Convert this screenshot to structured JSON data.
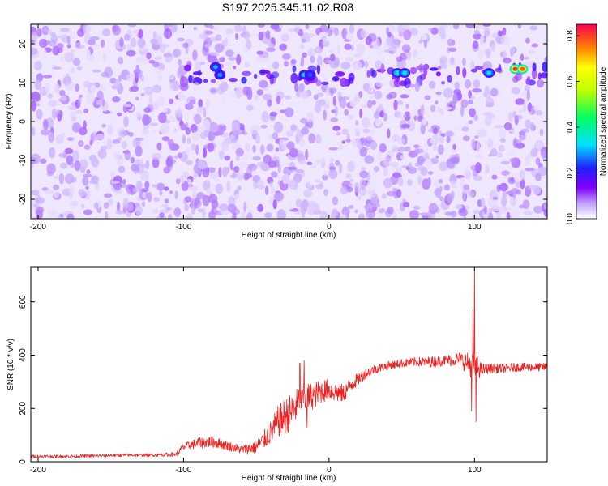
{
  "title": "S197.2025.345.11.02.R08",
  "colors": {
    "spectrogram_low": "#ffffff",
    "spectrogram_mid": "#8000ff",
    "snr_line": "#ee2222"
  },
  "chart_data": [
    {
      "type": "heatmap",
      "title": "S197.2025.345.11.02.R08",
      "xlabel": "Height of straight line (km)",
      "ylabel": "Frequency (Hz)",
      "xlim": [
        -205,
        150
      ],
      "ylim": [
        -25,
        25
      ],
      "x_ticks": [
        "-200",
        "-100",
        "0",
        "100"
      ],
      "x_tick_values": [
        -200,
        -100,
        0,
        100
      ],
      "y_ticks": [
        "-20",
        "-10",
        "0",
        "10",
        "20"
      ],
      "y_tick_values": [
        -20,
        -10,
        0,
        10,
        20
      ],
      "colorbar": {
        "label": "Normalized spectral amplitude",
        "range": [
          0,
          0.85
        ],
        "ticks": [
          "0.0",
          "0.2",
          "0.4",
          "0.6",
          "0.8"
        ],
        "tick_values": [
          0,
          0.2,
          0.4,
          0.6,
          0.8
        ],
        "colormap": "white-violet-blue-cyan-green-yellow-red"
      },
      "background_level": 0.05,
      "band": {
        "frequency_hz": 12,
        "x_start_km": -100,
        "x_end_km": 150,
        "level": 0.15
      },
      "hotspots": [
        {
          "x": -78,
          "y": 14,
          "value": 0.3
        },
        {
          "x": -75,
          "y": 12,
          "value": 0.28
        },
        {
          "x": -17,
          "y": 12,
          "value": 0.32
        },
        {
          "x": -13,
          "y": 12,
          "value": 0.25
        },
        {
          "x": 47,
          "y": 12.5,
          "value": 0.38
        },
        {
          "x": 52,
          "y": 12.5,
          "value": 0.36
        },
        {
          "x": 110,
          "y": 12.5,
          "value": 0.35
        },
        {
          "x": 128,
          "y": 13.5,
          "value": 0.82
        },
        {
          "x": 133,
          "y": 13.5,
          "value": 0.78
        }
      ],
      "grid": false
    },
    {
      "type": "line",
      "xlabel": "Height of straight line (km)",
      "ylabel": "SNR (10 * v/v)",
      "xlim": [
        -205,
        150
      ],
      "ylim": [
        0,
        730
      ],
      "x_ticks": [
        "-200",
        "-100",
        "0",
        "100"
      ],
      "x_tick_values": [
        -200,
        -100,
        0,
        100
      ],
      "y_ticks": [
        "0",
        "200",
        "400",
        "600"
      ],
      "y_tick_values": [
        0,
        200,
        400,
        600
      ],
      "grid": false,
      "series": [
        {
          "color": "#ee2222",
          "x": [
            -205,
            -180,
            -160,
            -140,
            -120,
            -105,
            -100,
            -90,
            -80,
            -70,
            -60,
            -50,
            -45,
            -40,
            -35,
            -30,
            -25,
            -20,
            -15,
            -10,
            -5,
            0,
            5,
            10,
            15,
            20,
            25,
            30,
            40,
            50,
            60,
            70,
            80,
            90,
            95,
            100,
            105,
            110,
            120,
            130,
            140,
            150
          ],
          "y": [
            20,
            20,
            22,
            25,
            25,
            28,
            55,
            70,
            75,
            60,
            45,
            55,
            80,
            110,
            150,
            170,
            190,
            230,
            240,
            250,
            265,
            270,
            260,
            255,
            290,
            310,
            330,
            345,
            360,
            370,
            375,
            375,
            380,
            385,
            370,
            360,
            345,
            350,
            350,
            355,
            355,
            355
          ],
          "noise": [
            6,
            6,
            6,
            6,
            6,
            8,
            14,
            20,
            22,
            18,
            16,
            25,
            35,
            45,
            60,
            70,
            70,
            60,
            55,
            50,
            45,
            40,
            38,
            35,
            30,
            24,
            20,
            18,
            16,
            16,
            18,
            20,
            20,
            28,
            40,
            60,
            25,
            18,
            18,
            16,
            16,
            16
          ]
        }
      ],
      "spikes": [
        {
          "x": -20,
          "y": 370
        },
        {
          "x": -17,
          "y": 380
        },
        {
          "x": -15,
          "y": 130
        },
        {
          "x": 99,
          "y": 570
        },
        {
          "x": 100,
          "y": 720
        },
        {
          "x": 101,
          "y": 150
        },
        {
          "x": 98,
          "y": 190
        }
      ]
    }
  ]
}
